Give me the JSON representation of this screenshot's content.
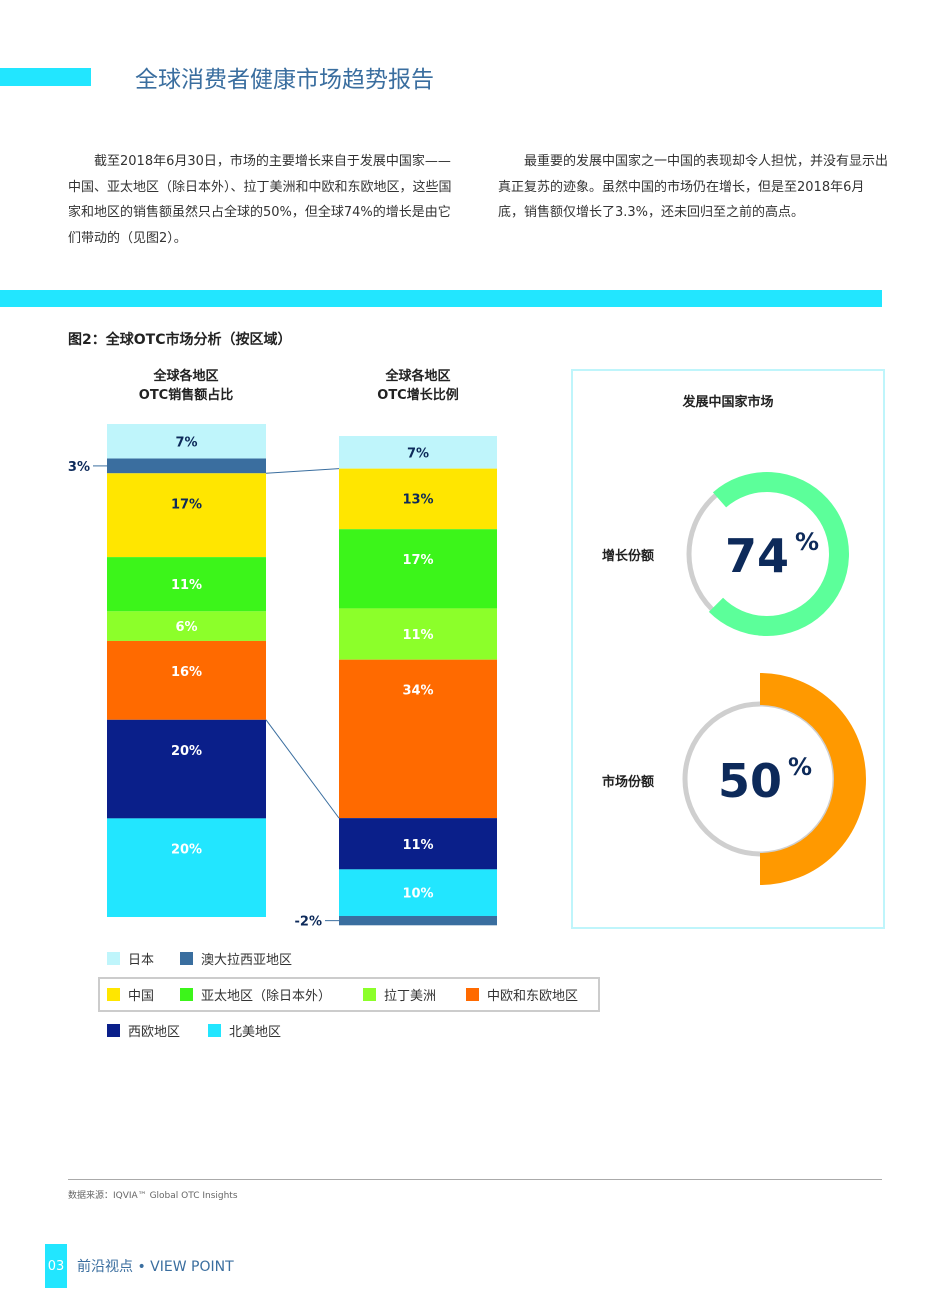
{
  "header": {
    "title": "全球消费者健康市场趋势报告"
  },
  "body": {
    "para_left": "截至2018年6月30日，市场的主要增长来自于发展中国家——中国、亚太地区（除日本外）、拉丁美洲和中欧和东欧地区，这些国家和地区的销售额虽然只占全球的50%，但全球74%的增长是由它们带动的（见图2）。",
    "para_right": "最重要的发展中国家之一中国的表现却令人担忧，并没有显示出真正复苏的迹象。虽然中国的市场仍在增长，但是至2018年6月底，销售额仅增长了3.3%，还未回归至之前的高点。"
  },
  "figure": {
    "title": "图2：全球OTC市场分析（按区域）"
  },
  "chart_data": [
    {
      "type": "bar",
      "stacked": true,
      "title": "全球各地区\nOTC销售额占比",
      "title_l1": "全球各地区",
      "title_l2": "OTC销售额占比",
      "categories": [
        "日本",
        "澳大拉西亚地区",
        "中国",
        "亚太地区（除日本外）",
        "拉丁美洲",
        "中欧和东欧地区",
        "西欧地区",
        "北美地区"
      ],
      "values": [
        7,
        3,
        17,
        11,
        6,
        16,
        20,
        20
      ],
      "labels": [
        "7%",
        "3%",
        "17%",
        "11%",
        "6%",
        "16%",
        "20%",
        "20%"
      ]
    },
    {
      "type": "bar",
      "stacked": true,
      "title": "全球各地区\nOTC增长比例",
      "title_l1": "全球各地区",
      "title_l2": "OTC增长比例",
      "categories": [
        "日本",
        "中国",
        "亚太地区（除日本外）",
        "拉丁美洲",
        "中欧和东欧地区",
        "西欧地区",
        "北美地区",
        "澳大拉西亚地区"
      ],
      "values": [
        7,
        13,
        17,
        11,
        34,
        11,
        10,
        -2
      ],
      "labels": [
        "7%",
        "13%",
        "17%",
        "11%",
        "34%",
        "11%",
        "10%",
        "-2%"
      ]
    },
    {
      "type": "pie",
      "subtype": "donut",
      "title": "发展中国家市场",
      "series": [
        {
          "name": "增长份额",
          "value": 74,
          "label": "74",
          "color": "#5cff9a"
        },
        {
          "name": "市场份额",
          "value": 50,
          "label": "50",
          "color": "#ff9900"
        }
      ],
      "unit": "%"
    }
  ],
  "colors": {
    "日本": "#bff5fb",
    "澳大拉西亚地区": "#3a6e9f",
    "中国": "#ffe600",
    "亚太地区（除日本外）": "#3cf51a",
    "拉丁美洲": "#8cff2a",
    "中欧和东欧地区": "#ff6a00",
    "西欧地区": "#0a1f8a",
    "北美地区": "#22e6ff",
    "accent": "#22e6ff",
    "title": "#3a6e9f"
  },
  "legend": [
    {
      "label": "日本",
      "key": "日本"
    },
    {
      "label": "澳大拉西亚地区",
      "key": "澳大拉西亚地区"
    },
    {
      "label": "中国",
      "key": "中国"
    },
    {
      "label": "亚太地区（除日本外）",
      "key": "亚太地区（除日本外）"
    },
    {
      "label": "拉丁美洲",
      "key": "拉丁美洲"
    },
    {
      "label": "中欧和东欧地区",
      "key": "中欧和东欧地区"
    },
    {
      "label": "西欧地区",
      "key": "西欧地区"
    },
    {
      "label": "北美地区",
      "key": "北美地区"
    }
  ],
  "footer": {
    "source": "数据来源：IQVIA™ Global OTC Insights",
    "page": "03",
    "section": "前沿视点 • VIEW POINT"
  }
}
